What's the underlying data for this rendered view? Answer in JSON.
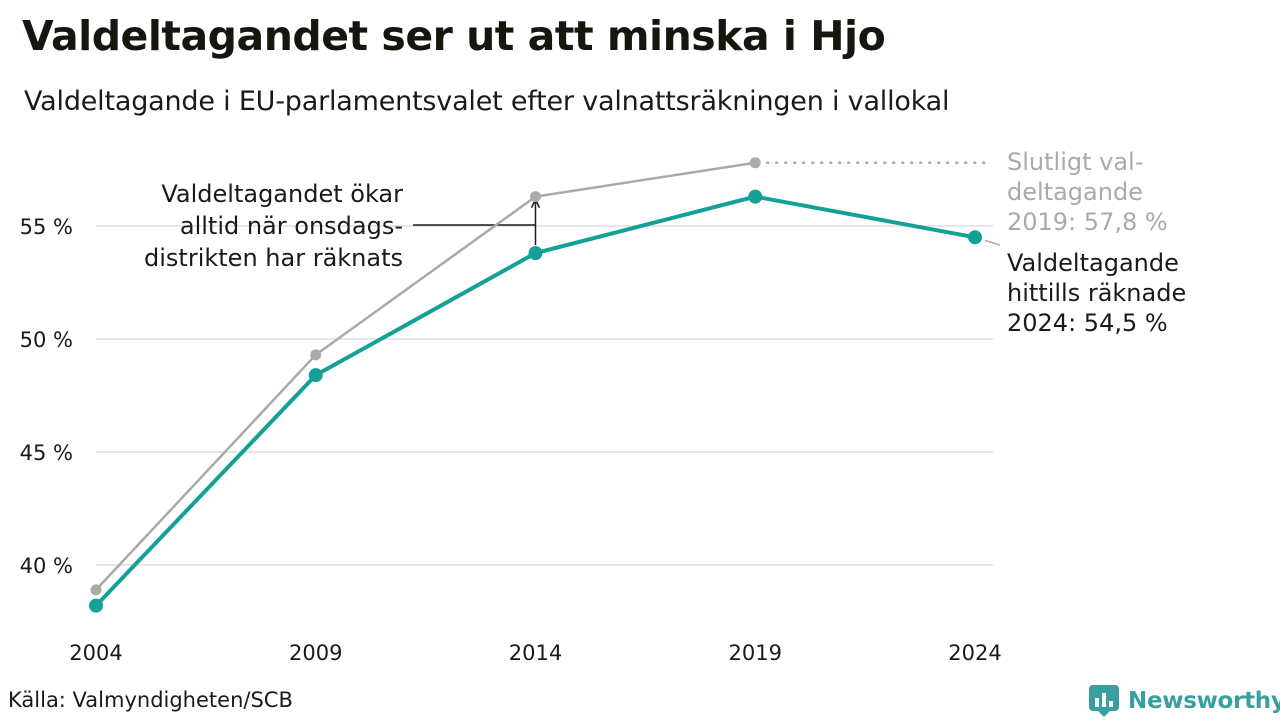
{
  "title": "Valdeltagandet ser ut att minska i Hjo",
  "subtitle": "Valdeltagande i EU-parlamentsvalet efter valnattsräkningen i vallokal",
  "source": "Källa: Valmyndigheten/SCB",
  "brand": "Newsworthy",
  "colors": {
    "teal": "#13a197",
    "gray": "#aaaaaa",
    "grid": "#e6e6e6",
    "text": "#1a1a1a",
    "brand": "#3a9fa0"
  },
  "annotations": {
    "wednesday": [
      "Valdeltagandet ökar",
      "alltid när onsdags-",
      "distrikten har räknats"
    ],
    "final2019": [
      "Slutligt val-",
      "deltagande",
      "2019: 57,8 %"
    ],
    "counted2024": [
      "Valdeltagande",
      "hittills räknade",
      "2024: 54,5 %"
    ]
  },
  "chart_data": {
    "type": "line",
    "x": [
      "2004",
      "2009",
      "2014",
      "2019",
      "2024"
    ],
    "y_ticks": [
      40,
      45,
      50,
      55
    ],
    "y_tick_labels": [
      "40 %",
      "45 %",
      "50 %",
      "55 %"
    ],
    "ylim": [
      38,
      58
    ],
    "grid": true,
    "series": [
      {
        "values": [
          38.9,
          49.3,
          56.3,
          57.8,
          null
        ]
      },
      {
        "values": [
          38.2,
          48.4,
          53.8,
          56.3,
          54.5
        ]
      }
    ]
  }
}
